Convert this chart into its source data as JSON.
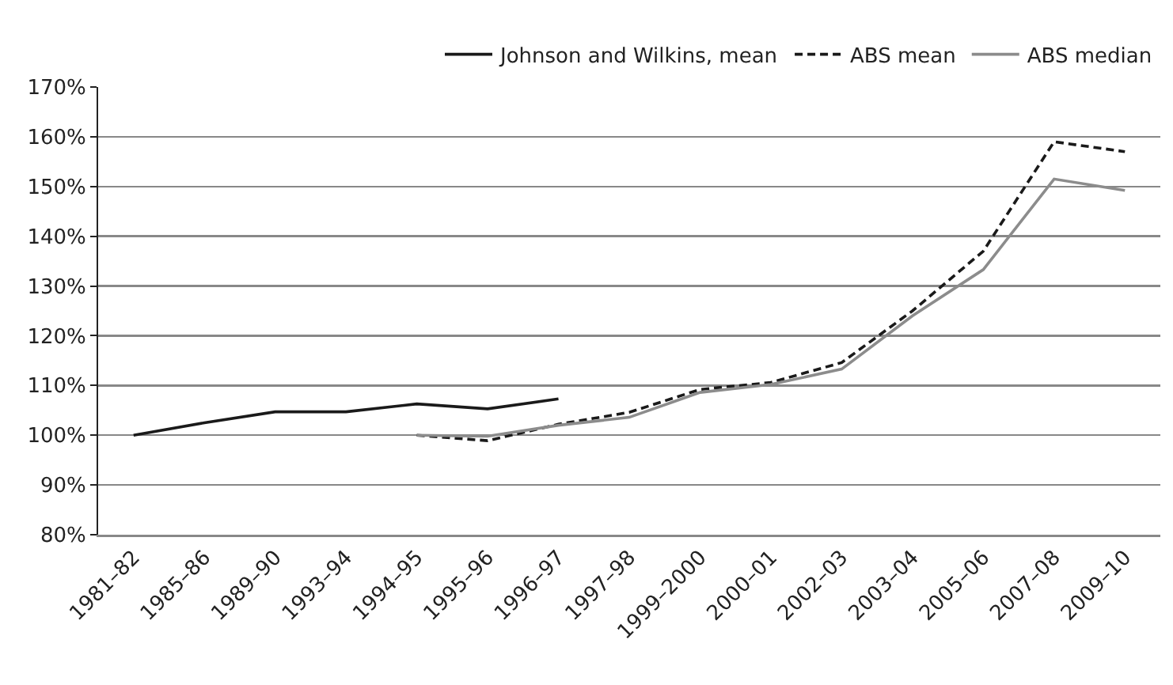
{
  "chart_data": {
    "type": "line",
    "categories": [
      "1981–82",
      "1985–86",
      "1989–90",
      "1993–94",
      "1994–95",
      "1995–96",
      "1996–97",
      "1997–98",
      "1999–2000",
      "2000–01",
      "2002–03",
      "2003–04",
      "2005–06",
      "2007–08",
      "2009–10"
    ],
    "series": [
      {
        "name": "Johnson and Wilkins, mean",
        "color": "#1a1a1a",
        "line_style": "solid",
        "values": [
          100,
          102.5,
          104.7,
          104.7,
          106.3,
          105.3,
          107.3,
          null,
          null,
          null,
          null,
          null,
          null,
          null,
          null
        ]
      },
      {
        "name": "ABS mean",
        "color": "#1a1a1a",
        "line_style": "dashed",
        "values": [
          null,
          null,
          null,
          null,
          100,
          98.9,
          102.2,
          104.6,
          109.2,
          110.6,
          114.6,
          125,
          137,
          159,
          157
        ]
      },
      {
        "name": "ABS median",
        "color": "#8c8c8c",
        "line_style": "solid",
        "values": [
          null,
          null,
          null,
          null,
          100,
          99.8,
          102,
          103.6,
          108.6,
          110.2,
          113.3,
          124,
          133.3,
          151.5,
          149.2
        ]
      }
    ],
    "ylim": [
      80,
      170
    ],
    "yticks": [
      {
        "value": 80,
        "label": "80%"
      },
      {
        "value": 90,
        "label": "90%"
      },
      {
        "value": 100,
        "label": "100%"
      },
      {
        "value": 110,
        "label": "110%"
      },
      {
        "value": 120,
        "label": "120%"
      },
      {
        "value": 130,
        "label": "130%"
      },
      {
        "value": 140,
        "label": "140%"
      },
      {
        "value": 150,
        "label": "150%"
      },
      {
        "value": 160,
        "label": "160%"
      },
      {
        "value": 170,
        "label": "170%"
      }
    ],
    "grid": "y",
    "legend": "top right",
    "marker": "none"
  }
}
